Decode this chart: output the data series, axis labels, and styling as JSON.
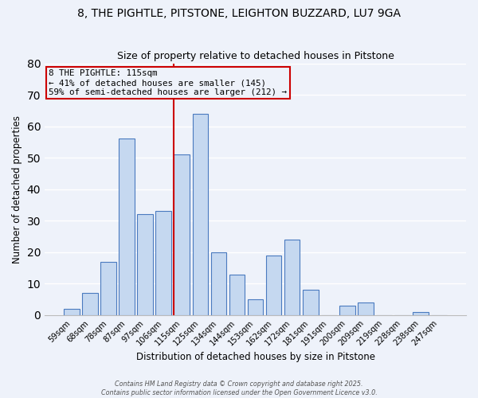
{
  "title": "8, THE PIGHTLE, PITSTONE, LEIGHTON BUZZARD, LU7 9GA",
  "subtitle": "Size of property relative to detached houses in Pitstone",
  "xlabel": "Distribution of detached houses by size in Pitstone",
  "ylabel": "Number of detached properties",
  "bar_labels": [
    "59sqm",
    "68sqm",
    "78sqm",
    "87sqm",
    "97sqm",
    "106sqm",
    "115sqm",
    "125sqm",
    "134sqm",
    "144sqm",
    "153sqm",
    "162sqm",
    "172sqm",
    "181sqm",
    "191sqm",
    "200sqm",
    "209sqm",
    "219sqm",
    "228sqm",
    "238sqm",
    "247sqm"
  ],
  "bar_values": [
    2,
    7,
    17,
    56,
    32,
    33,
    51,
    64,
    20,
    13,
    5,
    19,
    24,
    8,
    0,
    3,
    4,
    0,
    0,
    1,
    0
  ],
  "bar_color": "#c5d8f0",
  "bar_edge_color": "#4a7abf",
  "vline_color": "#cc0000",
  "annotation_lines": [
    "8 THE PIGHTLE: 115sqm",
    "← 41% of detached houses are smaller (145)",
    "59% of semi-detached houses are larger (212) →"
  ],
  "annotation_box_edge": "#cc0000",
  "ylim": [
    0,
    80
  ],
  "yticks": [
    0,
    10,
    20,
    30,
    40,
    50,
    60,
    70,
    80
  ],
  "background_color": "#eef2fa",
  "grid_color": "#ffffff",
  "footer_lines": [
    "Contains HM Land Registry data © Crown copyright and database right 2025.",
    "Contains public sector information licensed under the Open Government Licence v3.0."
  ]
}
